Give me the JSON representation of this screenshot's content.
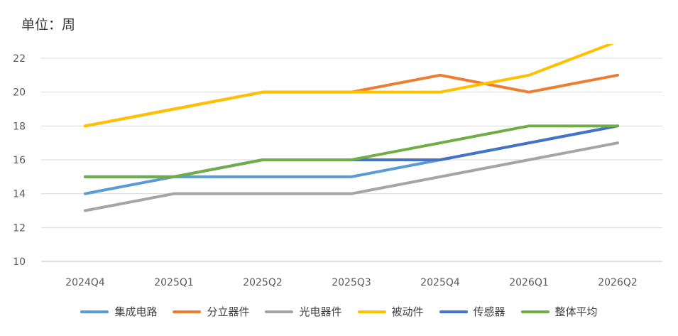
{
  "unit_label": "单位：周",
  "chart_data": {
    "type": "line",
    "categories": [
      "2024Q4",
      "2025Q1",
      "2025Q2",
      "2025Q3",
      "2025Q4",
      "2026Q1",
      "2026Q2"
    ],
    "ylim": [
      10,
      22
    ],
    "yticks": [
      10,
      12,
      14,
      16,
      18,
      20,
      22
    ],
    "grid": true,
    "legend_position": "bottom",
    "series": [
      {
        "name": "集成电路",
        "color": "#5B9BD5",
        "values": [
          14,
          15,
          15,
          15,
          16,
          17,
          18
        ]
      },
      {
        "name": "分立器件",
        "color": "#ED7D31",
        "values": [
          18,
          19,
          20,
          20,
          21,
          20,
          21
        ]
      },
      {
        "name": "光电器件",
        "color": "#A5A5A5",
        "values": [
          13,
          14,
          14,
          14,
          15,
          16,
          17
        ]
      },
      {
        "name": "被动件",
        "color": "#FFC000",
        "values": [
          18,
          19,
          20,
          20,
          20,
          21,
          23
        ]
      },
      {
        "name": "传感器",
        "color": "#4472C4",
        "values": [
          15,
          15,
          16,
          16,
          16,
          17,
          18
        ]
      },
      {
        "name": "整体平均",
        "color": "#70AD47",
        "values": [
          15,
          15,
          16,
          16,
          17,
          18,
          18
        ]
      }
    ]
  }
}
